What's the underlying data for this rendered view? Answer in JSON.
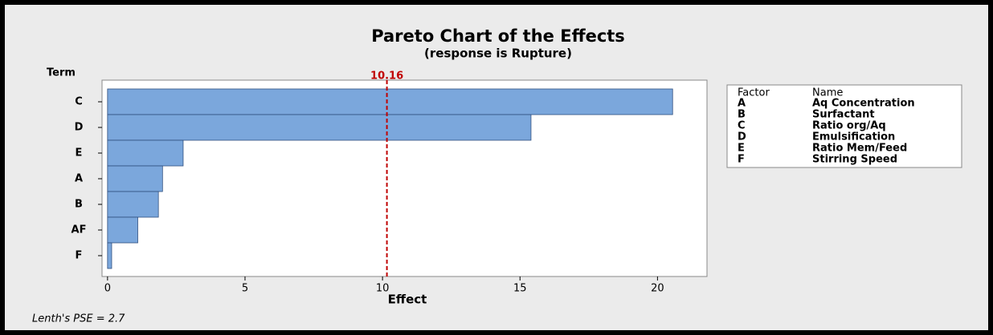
{
  "chart_data": {
    "type": "bar",
    "orientation": "horizontal",
    "title": "Pareto Chart of the Effects",
    "subtitle": "(response is Rupture)",
    "y_label": "Term",
    "x_label": "Effect",
    "categories": [
      "C",
      "D",
      "E",
      "A",
      "B",
      "AF",
      "F"
    ],
    "values": [
      20.55,
      15.4,
      2.75,
      2.0,
      1.85,
      1.1,
      0.15
    ],
    "color": "#7ba7dc",
    "xlim": [
      -0.2,
      21.8
    ],
    "xticks": [
      0,
      5,
      10,
      15,
      20
    ],
    "reference_line": {
      "value": 10.16,
      "color": "#c00000"
    },
    "legend": {
      "headers": [
        "Factor",
        "Name"
      ],
      "rows": [
        [
          "A",
          "Aq Concentration"
        ],
        [
          "B",
          "Surfactant"
        ],
        [
          "C",
          "Ratio org/Aq"
        ],
        [
          "D",
          "Emulsification"
        ],
        [
          "E",
          "Ratio Mem/Feed"
        ],
        [
          "F",
          "Stirring Speed"
        ]
      ]
    },
    "footnote": "Lenth's PSE = 2.7"
  }
}
